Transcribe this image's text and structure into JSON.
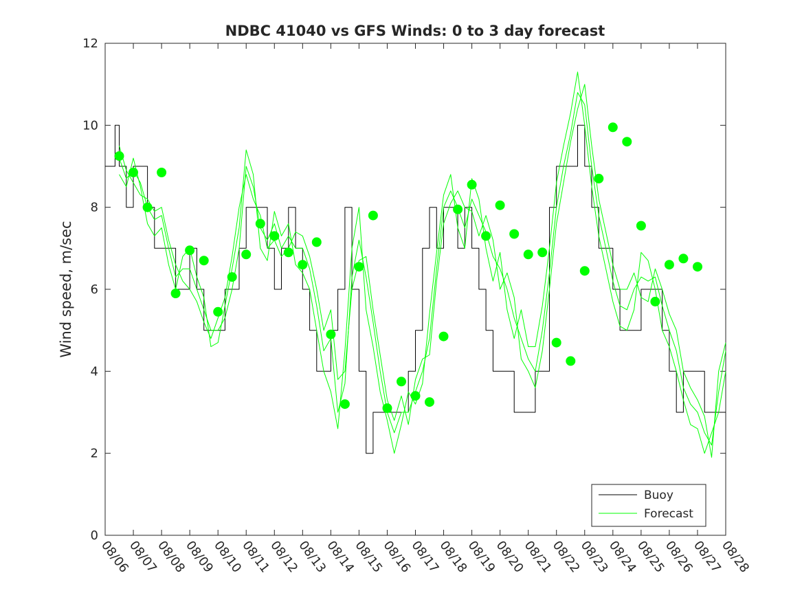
{
  "chart_data": {
    "type": "line",
    "title": "NDBC 41040 vs GFS Winds: 0 to 3 day forecast",
    "xlabel": "",
    "ylabel": "Wind speed, m/sec",
    "xlim": [
      0,
      22
    ],
    "ylim": [
      0,
      12
    ],
    "x_ticks": [
      "08/06",
      "08/07",
      "08/08",
      "08/09",
      "08/10",
      "08/11",
      "08/12",
      "08/13",
      "08/14",
      "08/15",
      "08/16",
      "08/17",
      "08/18",
      "08/19",
      "08/20",
      "08/21",
      "08/22",
      "08/23",
      "08/24",
      "08/25",
      "08/26",
      "08/27",
      "08/28"
    ],
    "y_ticks": [
      "0",
      "2",
      "4",
      "6",
      "8",
      "10",
      "12"
    ],
    "x_unit": "days since 08/06 00:00",
    "grid": false,
    "legend": {
      "position": "bottom-right",
      "entries": [
        "Buoy",
        "Forecast"
      ]
    },
    "colors": {
      "buoy": "#000000",
      "forecast": "#00ff00",
      "markers": "#00ff00",
      "axes": "#262626"
    },
    "series": [
      {
        "name": "Buoy",
        "color": "#000000",
        "x": [
          0,
          0.25,
          0.35,
          0.5,
          0.75,
          1,
          1.25,
          1.5,
          1.75,
          2,
          2.25,
          2.5,
          2.75,
          3,
          3.25,
          3.5,
          3.75,
          4,
          4.25,
          4.5,
          4.75,
          5,
          5.25,
          5.5,
          5.75,
          6,
          6.25,
          6.5,
          6.75,
          7,
          7.25,
          7.5,
          7.75,
          8,
          8.25,
          8.5,
          8.75,
          9,
          9.25,
          9.5,
          9.75,
          10,
          10.25,
          10.5,
          10.75,
          11,
          11.25,
          11.5,
          11.75,
          12,
          12.25,
          12.5,
          12.75,
          13,
          13.25,
          13.5,
          13.75,
          14,
          14.25,
          14.5,
          14.75,
          15,
          15.25,
          15.5,
          15.75,
          16,
          16.25,
          16.5,
          16.75,
          17,
          17.25,
          17.5,
          17.75,
          18,
          18.25,
          18.5,
          18.75,
          19,
          19.25,
          19.5,
          19.75,
          20,
          20.25,
          20.5,
          20.75,
          21,
          21.25,
          21.5,
          21.75,
          22
        ],
        "y": [
          9,
          9,
          10,
          9,
          8,
          9,
          9,
          8,
          7,
          7,
          7,
          6,
          6,
          7,
          6,
          5,
          5,
          5,
          6,
          6,
          7,
          8,
          8,
          8,
          7,
          6,
          7,
          8,
          7,
          6,
          5,
          4,
          4,
          5,
          6,
          8,
          6,
          4,
          2,
          3,
          3,
          3,
          3,
          3,
          4,
          5,
          7,
          8,
          7,
          8,
          8,
          7,
          8,
          7,
          6,
          5,
          4,
          4,
          4,
          3,
          3,
          3,
          4,
          4,
          8,
          9,
          9,
          9,
          10,
          9,
          8,
          7,
          7,
          6,
          5,
          5,
          5,
          6,
          6,
          6,
          5,
          4,
          3,
          4,
          4,
          4,
          3,
          3,
          3,
          3
        ]
      },
      {
        "name": "Forecast",
        "color": "#00ff00",
        "x": [
          0.5,
          0.75,
          1,
          1.25,
          1.5,
          1.75,
          2,
          2.25,
          2.5,
          2.75,
          3,
          3.25,
          3.5,
          3.75,
          4,
          4.25,
          4.5,
          4.75,
          5,
          5.25,
          5.5,
          5.75,
          6,
          6.25,
          6.5,
          6.75,
          7,
          7.25,
          7.5,
          7.75,
          8,
          8.25,
          8.5,
          8.75,
          9,
          9.25,
          9.5,
          9.75,
          10,
          10.25,
          10.5,
          10.75,
          11,
          11.25,
          11.5,
          11.75,
          12,
          12.25,
          12.5,
          12.75,
          13,
          13.25,
          13.5,
          13.75,
          14,
          14.25,
          14.5,
          14.75,
          15,
          15.25,
          15.5,
          15.75,
          16,
          16.25,
          16.5,
          16.75,
          17,
          17.25,
          17.5,
          17.75,
          18,
          18.25,
          18.5,
          18.75,
          19,
          19.25,
          19.5,
          19.75,
          20,
          20.25,
          20.5,
          20.75,
          21,
          21.25,
          21.5,
          21.75,
          22
        ],
        "y": [
          9.2,
          8.7,
          8.9,
          8.6,
          8.0,
          7.7,
          7.8,
          7.0,
          6.3,
          6.5,
          6.5,
          6.0,
          5.5,
          5.0,
          5.0,
          5.3,
          6.0,
          7.0,
          9.0,
          8.5,
          7.5,
          7.2,
          7.6,
          7.0,
          7.3,
          7.0,
          7.0,
          6.5,
          5.6,
          4.5,
          4.8,
          3.0,
          3.7,
          6.3,
          7.2,
          6.3,
          5.2,
          4.0,
          3.0,
          2.5,
          3.0,
          3.0,
          3.5,
          4.0,
          4.8,
          6.5,
          8.0,
          8.4,
          8.0,
          7.5,
          8.2,
          7.8,
          7.4,
          6.8,
          6.5,
          6.0,
          5.3,
          4.8,
          4.3,
          4.0,
          5.0,
          6.4,
          8.0,
          9.0,
          9.8,
          10.8,
          10.5,
          9.0,
          7.8,
          7.0,
          6.2,
          5.6,
          5.5,
          6.0,
          6.3,
          6.2,
          6.3,
          5.6,
          5.0,
          4.5,
          3.6,
          3.2,
          3.0,
          2.5,
          2.2,
          3.5,
          4.5
        ]
      },
      {
        "name": "",
        "color": "#00ff00",
        "x": [
          0.5,
          0.75,
          1,
          1.25,
          1.5,
          1.75,
          2,
          2.25,
          2.5,
          2.75,
          3,
          3.25,
          3.5,
          3.75,
          4,
          4.25,
          4.5,
          4.75,
          5,
          5.25,
          5.5,
          5.75,
          6,
          6.25,
          6.5,
          6.75,
          7,
          7.25,
          7.5,
          7.75,
          8,
          8.25,
          8.5,
          8.75,
          9,
          9.25,
          9.5,
          9.75,
          10,
          10.25,
          10.5,
          10.75,
          11,
          11.25,
          11.5,
          11.75,
          12,
          12.25,
          12.5,
          12.75,
          13,
          13.25,
          13.5,
          13.75,
          14,
          14.25,
          14.5,
          14.75,
          15,
          15.25,
          15.5,
          15.75,
          16,
          16.25,
          16.5,
          16.75,
          17,
          17.25,
          17.5,
          17.75,
          18,
          18.25,
          18.5,
          18.75,
          19,
          19.25,
          19.5,
          19.75,
          20,
          20.25,
          20.5,
          20.75,
          21,
          21.25,
          21.5,
          21.75,
          22
        ],
        "y": [
          8.8,
          8.5,
          9.2,
          8.5,
          7.6,
          7.3,
          7.5,
          6.6,
          6.0,
          6.8,
          7.0,
          6.3,
          5.8,
          4.6,
          4.7,
          5.6,
          6.5,
          7.5,
          9.4,
          8.8,
          7.0,
          6.7,
          7.9,
          7.3,
          7.6,
          6.6,
          6.4,
          6.0,
          5.0,
          4.0,
          3.5,
          2.6,
          4.5,
          7.0,
          8.0,
          5.5,
          4.6,
          3.5,
          2.8,
          2.0,
          2.7,
          3.5,
          3.2,
          3.7,
          5.4,
          6.9,
          8.3,
          8.8,
          7.5,
          7.0,
          8.7,
          8.2,
          7.0,
          6.2,
          6.9,
          5.5,
          4.8,
          5.5,
          4.6,
          4.6,
          5.6,
          7.0,
          8.6,
          9.5,
          10.3,
          11.3,
          10.0,
          8.5,
          7.3,
          6.5,
          5.7,
          5.1,
          5.0,
          5.5,
          6.9,
          6.7,
          6.0,
          5.0,
          4.6,
          4.0,
          3.3,
          2.7,
          2.6,
          2.0,
          2.5,
          3.0,
          4.0
        ]
      },
      {
        "name": "",
        "color": "#00ff00",
        "x": [
          0.5,
          0.75,
          1,
          1.25,
          1.5,
          1.75,
          2,
          2.25,
          2.5,
          2.75,
          3,
          3.25,
          3.5,
          3.75,
          4,
          4.25,
          4.5,
          4.75,
          5,
          5.25,
          5.5,
          5.75,
          6,
          6.25,
          6.5,
          6.75,
          7,
          7.25,
          7.5,
          7.75,
          8,
          8.25,
          8.5,
          8.75,
          9,
          9.25,
          9.5,
          9.75,
          10,
          10.25,
          10.5,
          10.75,
          11,
          11.25,
          11.5,
          11.75,
          12,
          12.25,
          12.5,
          12.75,
          13,
          13.25,
          13.5,
          13.75,
          14,
          14.25,
          14.5,
          14.75,
          15,
          15.25,
          15.5,
          15.75,
          16,
          16.25,
          16.5,
          16.75,
          17,
          17.25,
          17.5,
          17.75,
          18,
          18.25,
          18.5,
          18.75,
          19,
          19.25,
          19.5,
          19.75,
          20,
          20.25,
          20.5,
          20.75,
          21,
          21.25,
          21.5,
          21.75,
          22
        ],
        "y": [
          9.5,
          8.9,
          8.6,
          8.3,
          8.2,
          7.9,
          8.0,
          7.2,
          6.6,
          6.2,
          6.0,
          5.7,
          5.2,
          4.8,
          5.3,
          5.8,
          6.8,
          8.0,
          8.8,
          8.2,
          7.8,
          7.0,
          7.2,
          6.8,
          7.0,
          7.4,
          7.3,
          6.8,
          6.0,
          5.0,
          5.5,
          3.8,
          4.0,
          6.0,
          6.7,
          6.8,
          5.5,
          4.4,
          3.3,
          2.8,
          3.4,
          2.7,
          3.8,
          4.3,
          4.4,
          6.2,
          7.6,
          8.1,
          8.4,
          8.0,
          7.9,
          7.3,
          7.8,
          7.2,
          6.0,
          6.4,
          5.8,
          4.3,
          4.0,
          3.6,
          4.5,
          6.0,
          7.6,
          8.6,
          9.6,
          10.4,
          11.0,
          9.5,
          8.2,
          7.4,
          6.6,
          6.0,
          6.0,
          6.4,
          5.8,
          5.7,
          6.5,
          6.0,
          5.4,
          5.0,
          4.0,
          3.6,
          3.3,
          2.9,
          1.9,
          4.0,
          4.7
        ]
      }
    ],
    "markers": {
      "name": "",
      "color": "#00ff00",
      "x": [
        0.5,
        1,
        1.5,
        2,
        2.5,
        3,
        3.5,
        4,
        4.5,
        5,
        5.5,
        6,
        6.5,
        7,
        7.5,
        8,
        8.5,
        9,
        9.5,
        10,
        10.5,
        11,
        11.5,
        12,
        12.5,
        13,
        13.5,
        14,
        14.5,
        15,
        15.5,
        16,
        16.5,
        17,
        17.5,
        18,
        18.5,
        19,
        19.5,
        20,
        20.5,
        21
      ],
      "y": [
        9.25,
        8.85,
        8.0,
        8.85,
        5.9,
        6.95,
        6.7,
        5.45,
        6.3,
        6.85,
        7.6,
        7.3,
        6.9,
        6.6,
        7.15,
        4.9,
        3.2,
        6.55,
        7.8,
        3.1,
        3.75,
        3.4,
        3.25,
        4.85,
        7.95,
        8.55,
        7.3,
        8.05,
        7.35,
        6.85,
        6.9,
        4.7,
        4.25,
        6.45,
        8.7,
        9.95,
        9.6,
        7.55,
        5.7,
        6.6,
        6.75,
        6.55
      ]
    }
  }
}
